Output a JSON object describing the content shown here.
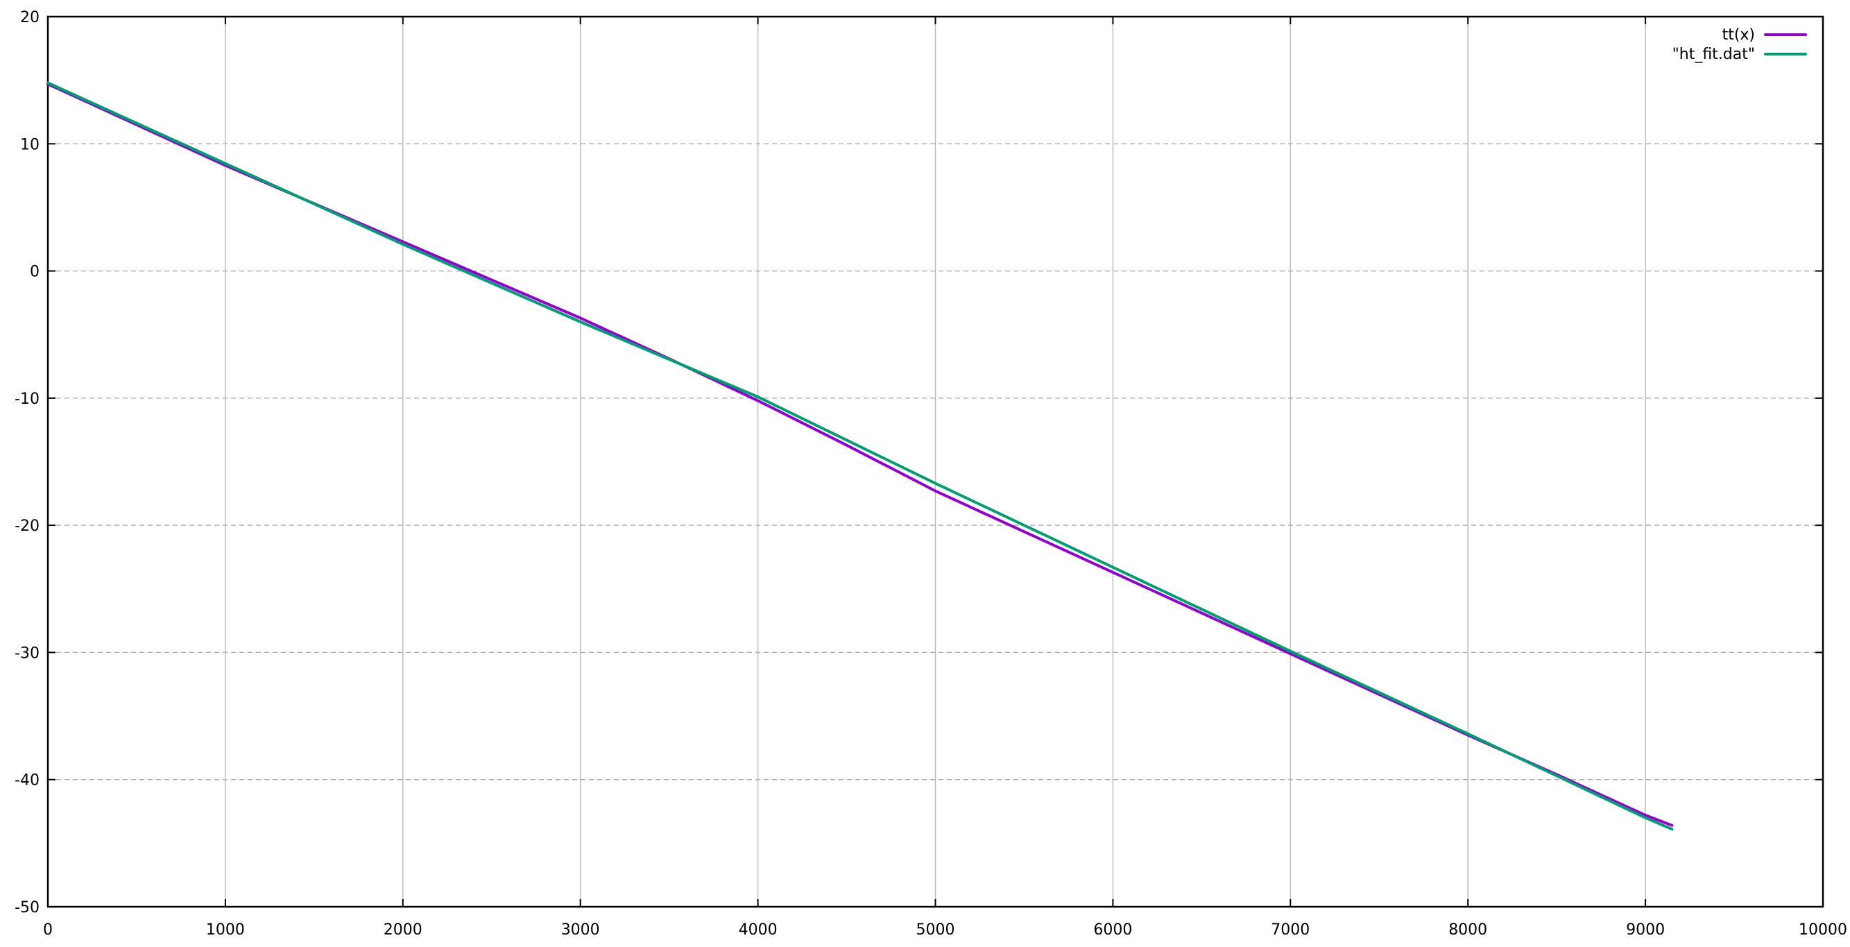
{
  "chart_data": {
    "type": "line",
    "title": "",
    "xlabel": "",
    "ylabel": "",
    "xlim": [
      0,
      10000
    ],
    "ylim": [
      -50,
      20
    ],
    "grid": true,
    "legend_position": "top-right-inside",
    "background": "#ffffff",
    "colors": {
      "axis": "#000000",
      "text": "#000000",
      "grid_vertical": "#bdbdbd",
      "grid_horizontal": "#b2b2b2"
    },
    "x_ticks": [
      {
        "v": 0,
        "label": "0"
      },
      {
        "v": 1000,
        "label": "1000"
      },
      {
        "v": 2000,
        "label": "2000"
      },
      {
        "v": 3000,
        "label": "3000"
      },
      {
        "v": 4000,
        "label": "4000"
      },
      {
        "v": 5000,
        "label": "5000"
      },
      {
        "v": 6000,
        "label": "6000"
      },
      {
        "v": 7000,
        "label": "7000"
      },
      {
        "v": 8000,
        "label": "8000"
      },
      {
        "v": 9000,
        "label": "9000"
      },
      {
        "v": 10000,
        "label": "10000"
      }
    ],
    "y_ticks": [
      {
        "v": 20,
        "label": "20"
      },
      {
        "v": 10,
        "label": "10"
      },
      {
        "v": 0,
        "label": "0"
      },
      {
        "v": -10,
        "label": "-10"
      },
      {
        "v": -20,
        "label": "-20"
      },
      {
        "v": -30,
        "label": "-30"
      },
      {
        "v": -40,
        "label": "-40"
      },
      {
        "v": -50,
        "label": "-50"
      }
    ],
    "series": [
      {
        "name": "tt(x)",
        "color": "#9400d3",
        "points": [
          [
            0,
            14.7
          ],
          [
            500,
            11.5
          ],
          [
            1000,
            8.3
          ],
          [
            1500,
            5.3
          ],
          [
            2000,
            2.3
          ],
          [
            2500,
            -0.7
          ],
          [
            3000,
            -3.7
          ],
          [
            3500,
            -6.9
          ],
          [
            4000,
            -10.2
          ],
          [
            4500,
            -13.7
          ],
          [
            5000,
            -17.3
          ],
          [
            5500,
            -20.5
          ],
          [
            6000,
            -23.7
          ],
          [
            6500,
            -26.9
          ],
          [
            7000,
            -30.1
          ],
          [
            7500,
            -33.3
          ],
          [
            8000,
            -36.5
          ],
          [
            8500,
            -39.6
          ],
          [
            9000,
            -42.8
          ],
          [
            9150,
            -43.6
          ]
        ]
      },
      {
        "name": "\"ht_fit.dat\"",
        "color": "#009e73",
        "points": [
          [
            0,
            14.8
          ],
          [
            1000,
            8.45
          ],
          [
            2000,
            2.1
          ],
          [
            3000,
            -4.0
          ],
          [
            4000,
            -9.9
          ],
          [
            5000,
            -16.7
          ],
          [
            6000,
            -23.3
          ],
          [
            7000,
            -29.9
          ],
          [
            8000,
            -36.4
          ],
          [
            9000,
            -43.0
          ],
          [
            9150,
            -43.9
          ]
        ]
      }
    ]
  }
}
